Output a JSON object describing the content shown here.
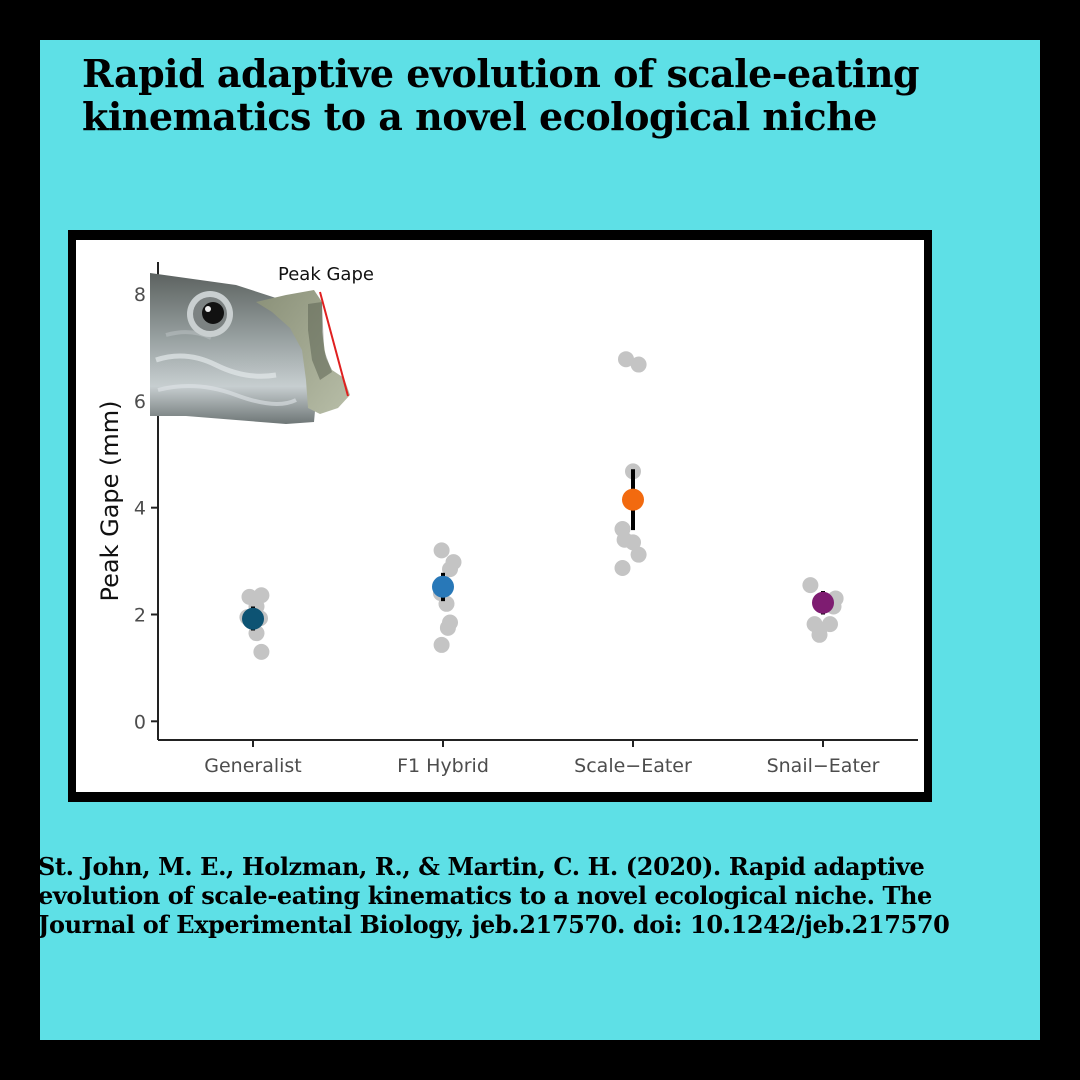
{
  "title": "Rapid adaptive evolution of scale-eating kinematics to a novel ecological niche",
  "citation": "St. John, M. E., Holzman, R., & Martin, C. H. (2020). Rapid adaptive evolution of scale-eating kinematics to a novel ecological niche. The Journal of Experimental Biology, jeb.217570. doi: 10.1242/jeb.217570",
  "colors": {
    "outer_border": "#000000",
    "panel_background": "#5ee0e6",
    "raw_points": "#c4c4c4",
    "inset_line": "#e02020"
  },
  "chart_data": {
    "type": "scatter",
    "title": "",
    "xlabel": "",
    "ylabel": "Peak Gape (mm)",
    "ylim": [
      -0.35,
      8.6
    ],
    "yticks": [
      0,
      2,
      4,
      6,
      8
    ],
    "grid": false,
    "categories": [
      "Generalist",
      "F1 Hybrid",
      "Scale−Eater",
      "Snail−Eater"
    ],
    "inset": {
      "label": "Peak Gape",
      "icon": "fish-head-photo"
    },
    "groups": [
      {
        "category": "Generalist",
        "mean": 1.92,
        "ci": [
          1.7,
          2.15
        ],
        "color": "#0d5373",
        "points": [
          {
            "dx": -0.05,
            "y": 2.33
          },
          {
            "dx": 0.12,
            "y": 2.36
          },
          {
            "dx": 0.05,
            "y": 2.15
          },
          {
            "dx": 0.1,
            "y": 1.93
          },
          {
            "dx": -0.08,
            "y": 1.95
          },
          {
            "dx": 0.05,
            "y": 1.65
          },
          {
            "dx": 0.12,
            "y": 1.3
          }
        ]
      },
      {
        "category": "F1 Hybrid",
        "mean": 2.52,
        "ci": [
          2.25,
          2.78
        ],
        "color": "#2878b8",
        "points": [
          {
            "dx": -0.02,
            "y": 3.2
          },
          {
            "dx": 0.15,
            "y": 2.98
          },
          {
            "dx": 0.1,
            "y": 2.85
          },
          {
            "dx": -0.03,
            "y": 2.4
          },
          {
            "dx": 0.05,
            "y": 2.2
          },
          {
            "dx": 0.1,
            "y": 1.85
          },
          {
            "dx": 0.07,
            "y": 1.75
          },
          {
            "dx": -0.02,
            "y": 1.43
          }
        ]
      },
      {
        "category": "Scale−Eater",
        "mean": 4.15,
        "ci": [
          3.58,
          4.72
        ],
        "color": "#f26a0f",
        "points": [
          {
            "dx": -0.1,
            "y": 6.78
          },
          {
            "dx": 0.08,
            "y": 6.68
          },
          {
            "dx": 0.0,
            "y": 4.68
          },
          {
            "dx": -0.15,
            "y": 3.6
          },
          {
            "dx": -0.12,
            "y": 3.4
          },
          {
            "dx": 0.0,
            "y": 3.35
          },
          {
            "dx": 0.08,
            "y": 3.12
          },
          {
            "dx": -0.15,
            "y": 2.87
          }
        ]
      },
      {
        "category": "Snail−Eater",
        "mean": 2.22,
        "ci": [
          2.0,
          2.44
        ],
        "color": "#7e1c71",
        "points": [
          {
            "dx": -0.18,
            "y": 2.55
          },
          {
            "dx": 0.18,
            "y": 2.3
          },
          {
            "dx": 0.15,
            "y": 2.15
          },
          {
            "dx": -0.12,
            "y": 1.82
          },
          {
            "dx": 0.1,
            "y": 1.82
          },
          {
            "dx": -0.05,
            "y": 1.72
          },
          {
            "dx": -0.05,
            "y": 1.62
          }
        ]
      }
    ]
  }
}
